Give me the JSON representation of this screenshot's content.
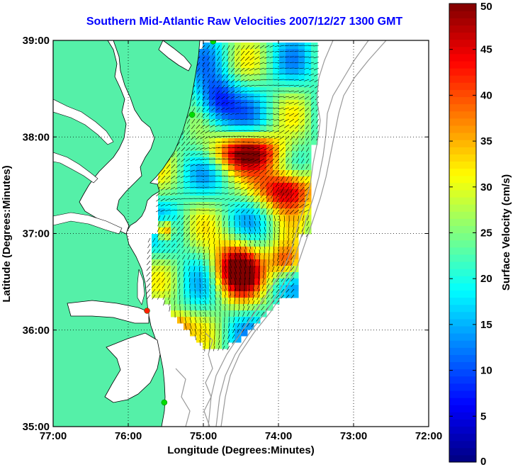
{
  "title": "Southern Mid-Atlantic Raw Velocities 2007/12/27 1300 GMT",
  "map": {
    "xlabel": "Longitude (Degrees:Minutes)",
    "ylabel": "Latitude (Degrees:Minutes)",
    "lon_range": [
      -77,
      -72
    ],
    "lat_range": [
      35,
      39
    ],
    "lon_ticks": [
      {
        "value": -77,
        "label": "77:00"
      },
      {
        "value": -76,
        "label": "76:00"
      },
      {
        "value": -75,
        "label": "75:00"
      },
      {
        "value": -74,
        "label": "74:00"
      },
      {
        "value": -73,
        "label": "73:00"
      },
      {
        "value": -72,
        "label": "72:00"
      }
    ],
    "lat_ticks": [
      {
        "value": 35,
        "label": "35:00"
      },
      {
        "value": 36,
        "label": "36:00"
      },
      {
        "value": 37,
        "label": "37:00"
      },
      {
        "value": 38,
        "label": "38:00"
      },
      {
        "value": 39,
        "label": "39:00"
      }
    ],
    "grid": "dotted",
    "land_color": "#55f0a8",
    "sea_color": "#ffffff",
    "stations": [
      {
        "lon": -74.87,
        "lat": 38.99,
        "color": "#00dd00"
      },
      {
        "lon": -75.15,
        "lat": 38.23,
        "color": "#00dd00"
      },
      {
        "lon": -75.75,
        "lat": 36.2,
        "color": "#ff2000"
      },
      {
        "lon": -75.52,
        "lat": 35.25,
        "color": "#00dd00"
      }
    ]
  },
  "colorbar": {
    "label": "Surface Velocity (cm/s)",
    "min": 0,
    "max": 50,
    "ticks": [
      0,
      5,
      10,
      15,
      20,
      25,
      30,
      35,
      40,
      45,
      50
    ],
    "colormap": "jet"
  }
}
